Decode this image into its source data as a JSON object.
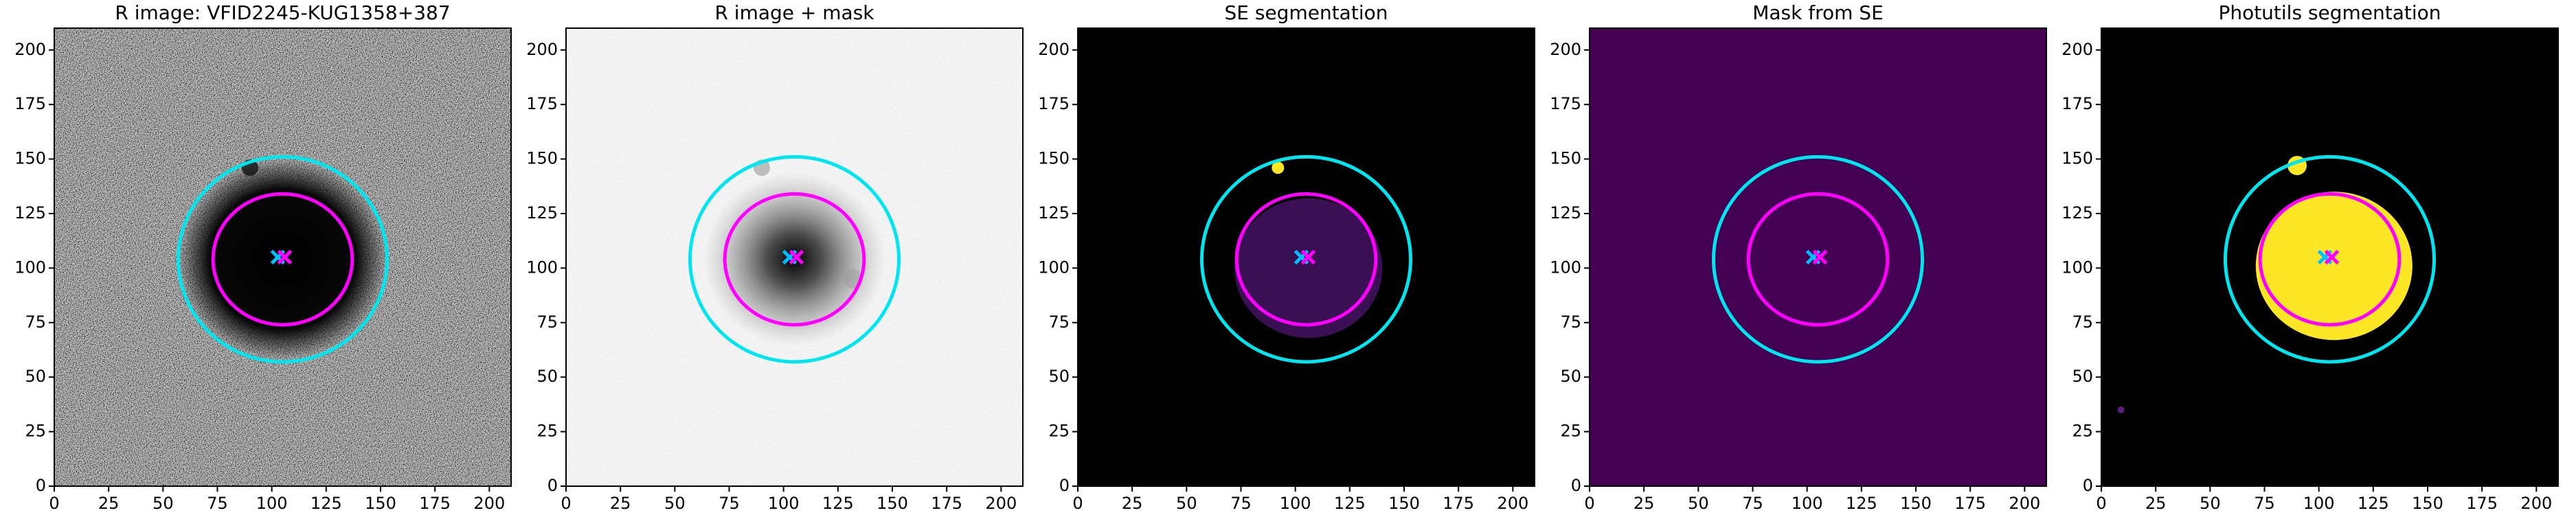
{
  "chart_data": [
    {
      "type": "image",
      "title": "R image: VFID2245-KUG1358+387",
      "xlim": [
        0,
        210
      ],
      "ylim": [
        0,
        210
      ],
      "xticks": [
        0,
        25,
        50,
        75,
        100,
        125,
        150,
        175,
        200
      ],
      "yticks": [
        0,
        25,
        50,
        75,
        100,
        125,
        150,
        175,
        200
      ]
    },
    {
      "type": "image",
      "title": "R image + mask",
      "xlim": [
        0,
        210
      ],
      "ylim": [
        0,
        210
      ],
      "xticks": [
        0,
        25,
        50,
        75,
        100,
        125,
        150,
        175,
        200
      ],
      "yticks": [
        0,
        25,
        50,
        75,
        100,
        125,
        150,
        175,
        200
      ]
    },
    {
      "type": "image",
      "title": "SE segmentation",
      "xlim": [
        0,
        210
      ],
      "ylim": [
        0,
        210
      ],
      "xticks": [
        0,
        25,
        50,
        75,
        100,
        125,
        150,
        175,
        200
      ],
      "yticks": [
        0,
        25,
        50,
        75,
        100,
        125,
        150,
        175,
        200
      ]
    },
    {
      "type": "image",
      "title": "Mask from SE",
      "xlim": [
        0,
        210
      ],
      "ylim": [
        0,
        210
      ],
      "xticks": [
        0,
        25,
        50,
        75,
        100,
        125,
        150,
        175,
        200
      ],
      "yticks": [
        0,
        25,
        50,
        75,
        100,
        125,
        150,
        175,
        200
      ]
    },
    {
      "type": "image",
      "title": "Photutils segmentation",
      "xlim": [
        0,
        210
      ],
      "ylim": [
        0,
        210
      ],
      "xticks": [
        0,
        25,
        50,
        75,
        100,
        125,
        150,
        175,
        200
      ],
      "yticks": [
        0,
        25,
        50,
        75,
        100,
        125,
        150,
        175,
        200
      ]
    }
  ]
}
